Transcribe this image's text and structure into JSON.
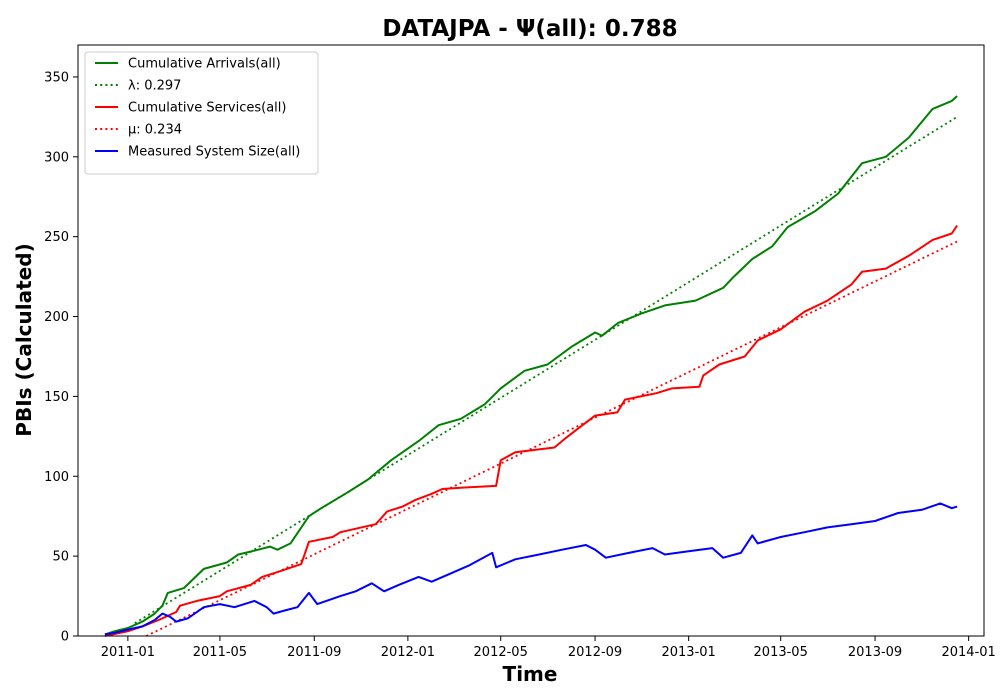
{
  "chart_data": {
    "type": "line",
    "title": "DATAJPA -  Ψ(all): 0.788",
    "xlabel": "Time",
    "ylabel": "PBIs (Calculated)",
    "xlim": [
      "2010-10-28",
      "2014-01-21"
    ],
    "ylim": [
      0,
      370
    ],
    "x_ticks": [
      "2011-01-01",
      "2011-05-01",
      "2011-09-01",
      "2012-01-01",
      "2012-05-01",
      "2012-09-01",
      "2013-01-01",
      "2013-05-01",
      "2013-09-01",
      "2014-01-01"
    ],
    "x_tick_labels": [
      "2011-01",
      "2011-05",
      "2011-09",
      "2012-01",
      "2012-05",
      "2012-09",
      "2013-01",
      "2013-05",
      "2013-09",
      "2014-01"
    ],
    "y_ticks": [
      0,
      50,
      100,
      150,
      200,
      250,
      300,
      350
    ],
    "grid": false,
    "legend_position": "top-left",
    "series": [
      {
        "name": "Cumulative Arrivals(all)",
        "color": "#008000",
        "style": "solid",
        "points": [
          [
            "2010-12-02",
            1
          ],
          [
            "2010-12-15",
            3
          ],
          [
            "2011-01-01",
            5
          ],
          [
            "2011-01-20",
            9
          ],
          [
            "2011-02-05",
            14
          ],
          [
            "2011-02-15",
            19
          ],
          [
            "2011-02-22",
            27
          ],
          [
            "2011-03-15",
            30
          ],
          [
            "2011-04-10",
            42
          ],
          [
            "2011-05-10",
            46
          ],
          [
            "2011-05-25",
            51
          ],
          [
            "2011-06-20",
            54
          ],
          [
            "2011-07-05",
            56
          ],
          [
            "2011-07-15",
            54
          ],
          [
            "2011-08-01",
            58
          ],
          [
            "2011-08-25",
            75
          ],
          [
            "2011-09-10",
            80
          ],
          [
            "2011-10-15",
            90
          ],
          [
            "2011-11-10",
            98
          ],
          [
            "2011-12-10",
            110
          ],
          [
            "2012-01-15",
            122
          ],
          [
            "2012-02-10",
            132
          ],
          [
            "2012-03-10",
            136
          ],
          [
            "2012-04-10",
            145
          ],
          [
            "2012-05-01",
            155
          ],
          [
            "2012-06-01",
            166
          ],
          [
            "2012-07-01",
            170
          ],
          [
            "2012-08-01",
            181
          ],
          [
            "2012-09-01",
            190
          ],
          [
            "2012-09-10",
            188
          ],
          [
            "2012-10-01",
            196
          ],
          [
            "2012-11-01",
            202
          ],
          [
            "2012-12-01",
            207
          ],
          [
            "2013-01-10",
            210
          ],
          [
            "2013-02-15",
            218
          ],
          [
            "2013-03-01",
            225
          ],
          [
            "2013-03-25",
            236
          ],
          [
            "2013-04-20",
            244
          ],
          [
            "2013-05-10",
            256
          ],
          [
            "2013-06-15",
            266
          ],
          [
            "2013-07-15",
            277
          ],
          [
            "2013-08-15",
            296
          ],
          [
            "2013-09-15",
            300
          ],
          [
            "2013-10-15",
            312
          ],
          [
            "2013-11-15",
            330
          ],
          [
            "2013-12-10",
            335
          ],
          [
            "2013-12-17",
            338
          ]
        ]
      },
      {
        "name": "λ: 0.297",
        "color": "#008000",
        "style": "dotted",
        "points": [
          [
            "2011-01-10",
            8
          ],
          [
            "2013-12-17",
            325
          ]
        ]
      },
      {
        "name": "Cumulative Services(all)",
        "color": "#ff0000",
        "style": "solid",
        "points": [
          [
            "2010-12-02",
            0
          ],
          [
            "2011-01-01",
            3
          ],
          [
            "2011-01-20",
            6
          ],
          [
            "2011-02-10",
            10
          ],
          [
            "2011-03-05",
            15
          ],
          [
            "2011-03-10",
            19
          ],
          [
            "2011-04-01",
            22
          ],
          [
            "2011-05-01",
            25
          ],
          [
            "2011-05-10",
            28
          ],
          [
            "2011-06-10",
            32
          ],
          [
            "2011-06-25",
            37
          ],
          [
            "2011-07-15",
            40
          ],
          [
            "2011-08-15",
            45
          ],
          [
            "2011-08-20",
            52
          ],
          [
            "2011-08-25",
            59
          ],
          [
            "2011-09-25",
            62
          ],
          [
            "2011-10-05",
            65
          ],
          [
            "2011-11-20",
            70
          ],
          [
            "2011-12-05",
            78
          ],
          [
            "2011-12-25",
            81
          ],
          [
            "2012-01-10",
            85
          ],
          [
            "2012-02-01",
            89
          ],
          [
            "2012-02-15",
            92
          ],
          [
            "2012-03-15",
            93
          ],
          [
            "2012-04-25",
            94
          ],
          [
            "2012-05-01",
            110
          ],
          [
            "2012-05-20",
            115
          ],
          [
            "2012-07-10",
            118
          ],
          [
            "2012-07-25",
            124
          ],
          [
            "2012-08-10",
            130
          ],
          [
            "2012-09-01",
            138
          ],
          [
            "2012-09-30",
            140
          ],
          [
            "2012-10-10",
            148
          ],
          [
            "2012-11-20",
            152
          ],
          [
            "2012-12-10",
            155
          ],
          [
            "2013-01-15",
            156
          ],
          [
            "2013-01-20",
            163
          ],
          [
            "2013-02-10",
            170
          ],
          [
            "2013-03-15",
            175
          ],
          [
            "2013-04-01",
            185
          ],
          [
            "2013-05-01",
            192
          ],
          [
            "2013-06-01",
            203
          ],
          [
            "2013-07-01",
            210
          ],
          [
            "2013-08-01",
            220
          ],
          [
            "2013-08-15",
            228
          ],
          [
            "2013-09-15",
            230
          ],
          [
            "2013-10-15",
            238
          ],
          [
            "2013-11-15",
            248
          ],
          [
            "2013-12-10",
            252
          ],
          [
            "2013-12-17",
            257
          ]
        ]
      },
      {
        "name": "μ: 0.234",
        "color": "#ff0000",
        "style": "dotted",
        "points": [
          [
            "2011-01-25",
            0
          ],
          [
            "2013-12-17",
            247
          ]
        ]
      },
      {
        "name": "Measured System Size(all)",
        "color": "#0000ff",
        "style": "solid",
        "points": [
          [
            "2010-12-02",
            1
          ],
          [
            "2010-12-15",
            2
          ],
          [
            "2011-01-01",
            4
          ],
          [
            "2011-01-20",
            6
          ],
          [
            "2011-02-05",
            10
          ],
          [
            "2011-02-15",
            14
          ],
          [
            "2011-02-25",
            12
          ],
          [
            "2011-03-05",
            9
          ],
          [
            "2011-03-20",
            11
          ],
          [
            "2011-04-10",
            18
          ],
          [
            "2011-05-01",
            20
          ],
          [
            "2011-05-20",
            18
          ],
          [
            "2011-06-15",
            22
          ],
          [
            "2011-07-01",
            18
          ],
          [
            "2011-07-10",
            14
          ],
          [
            "2011-07-25",
            16
          ],
          [
            "2011-08-10",
            18
          ],
          [
            "2011-08-25",
            27
          ],
          [
            "2011-09-05",
            20
          ],
          [
            "2011-10-05",
            25
          ],
          [
            "2011-10-25",
            28
          ],
          [
            "2011-11-15",
            33
          ],
          [
            "2011-12-01",
            28
          ],
          [
            "2011-12-20",
            32
          ],
          [
            "2012-01-15",
            37
          ],
          [
            "2012-02-01",
            34
          ],
          [
            "2012-03-01",
            40
          ],
          [
            "2012-03-20",
            44
          ],
          [
            "2012-04-20",
            52
          ],
          [
            "2012-04-25",
            43
          ],
          [
            "2012-05-20",
            48
          ],
          [
            "2012-06-20",
            51
          ],
          [
            "2012-07-20",
            54
          ],
          [
            "2012-08-20",
            57
          ],
          [
            "2012-09-01",
            54
          ],
          [
            "2012-09-15",
            49
          ],
          [
            "2012-10-15",
            52
          ],
          [
            "2012-11-15",
            55
          ],
          [
            "2012-12-01",
            51
          ],
          [
            "2013-01-01",
            53
          ],
          [
            "2013-02-01",
            55
          ],
          [
            "2013-02-15",
            49
          ],
          [
            "2013-03-10",
            52
          ],
          [
            "2013-03-25",
            63
          ],
          [
            "2013-04-01",
            58
          ],
          [
            "2013-05-01",
            62
          ],
          [
            "2013-06-01",
            65
          ],
          [
            "2013-07-01",
            68
          ],
          [
            "2013-08-01",
            70
          ],
          [
            "2013-09-01",
            72
          ],
          [
            "2013-10-01",
            77
          ],
          [
            "2013-11-01",
            79
          ],
          [
            "2013-11-25",
            83
          ],
          [
            "2013-12-10",
            80
          ],
          [
            "2013-12-17",
            81
          ]
        ]
      }
    ]
  }
}
